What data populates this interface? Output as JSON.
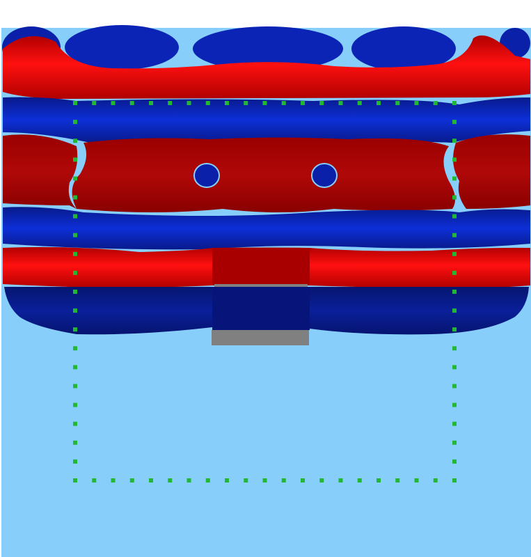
{
  "scene": {
    "description_colors": {
      "background_top": "#ffffff",
      "domain_background": "#87cefa",
      "positive_field": "#e80000",
      "negative_field": "#0a1a9e",
      "probe_marker": "#22b833",
      "wall": "#808080"
    },
    "icons": {
      "probe_marker": "square-dot",
      "wall_block": "rectangle"
    }
  }
}
